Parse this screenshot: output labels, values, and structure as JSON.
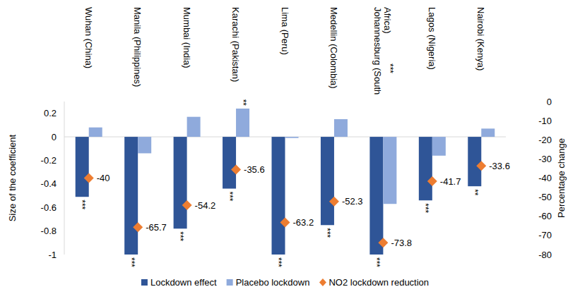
{
  "chart_data": {
    "type": "bar",
    "categories": [
      "Wuhan (China)",
      "Manila (Philippines)",
      "Mumbai (India)",
      "Karachi (Pakistan)",
      "Lima (Peru)",
      "Medellin (Colombia)",
      "Johannesburg (South Africa)",
      "Lagos (Nigeria)",
      "Nairobi (Kenya)"
    ],
    "y_label": "Size of the coefficient",
    "y2_label": "Percentage change",
    "ylim": [
      -1,
      0.3
    ],
    "yticks": [
      -1,
      -0.8,
      -0.6,
      -0.4,
      -0.2,
      0,
      0.2
    ],
    "y2lim": [
      -80,
      0
    ],
    "y2ticks": [
      -80,
      -70,
      -60,
      -50,
      -40,
      -30,
      -20,
      -10,
      0
    ],
    "grid": false,
    "legend": "bottom",
    "series": [
      {
        "name": "Lockdown effect",
        "type": "bar",
        "color": "#2f5597",
        "values": [
          -0.51,
          -1,
          -0.78,
          -0.44,
          -1,
          -0.75,
          -1,
          -0.54,
          -0.42
        ],
        "annotations": [
          "***",
          "***",
          "***",
          "***",
          "***",
          "***",
          "***",
          "***",
          "**"
        ]
      },
      {
        "name": "Placebo lockdown",
        "type": "bar",
        "color": "#8faadc",
        "values": [
          0.08,
          -0.14,
          0.17,
          0.24,
          -0.01,
          0.15,
          -0.57,
          -0.16,
          0.07
        ],
        "annotations": [
          null,
          null,
          null,
          "**",
          null,
          null,
          "***",
          null,
          null
        ]
      },
      {
        "name": "NO2 lockdown reduction",
        "type": "scatter",
        "axis": "y2",
        "marker": "diamond",
        "color": "#ed7d31",
        "data_labels": true,
        "values": [
          -40,
          -65.7,
          -54.2,
          -35.6,
          -63.2,
          -52.3,
          -73.8,
          -41.7,
          -33.6
        ]
      }
    ]
  }
}
